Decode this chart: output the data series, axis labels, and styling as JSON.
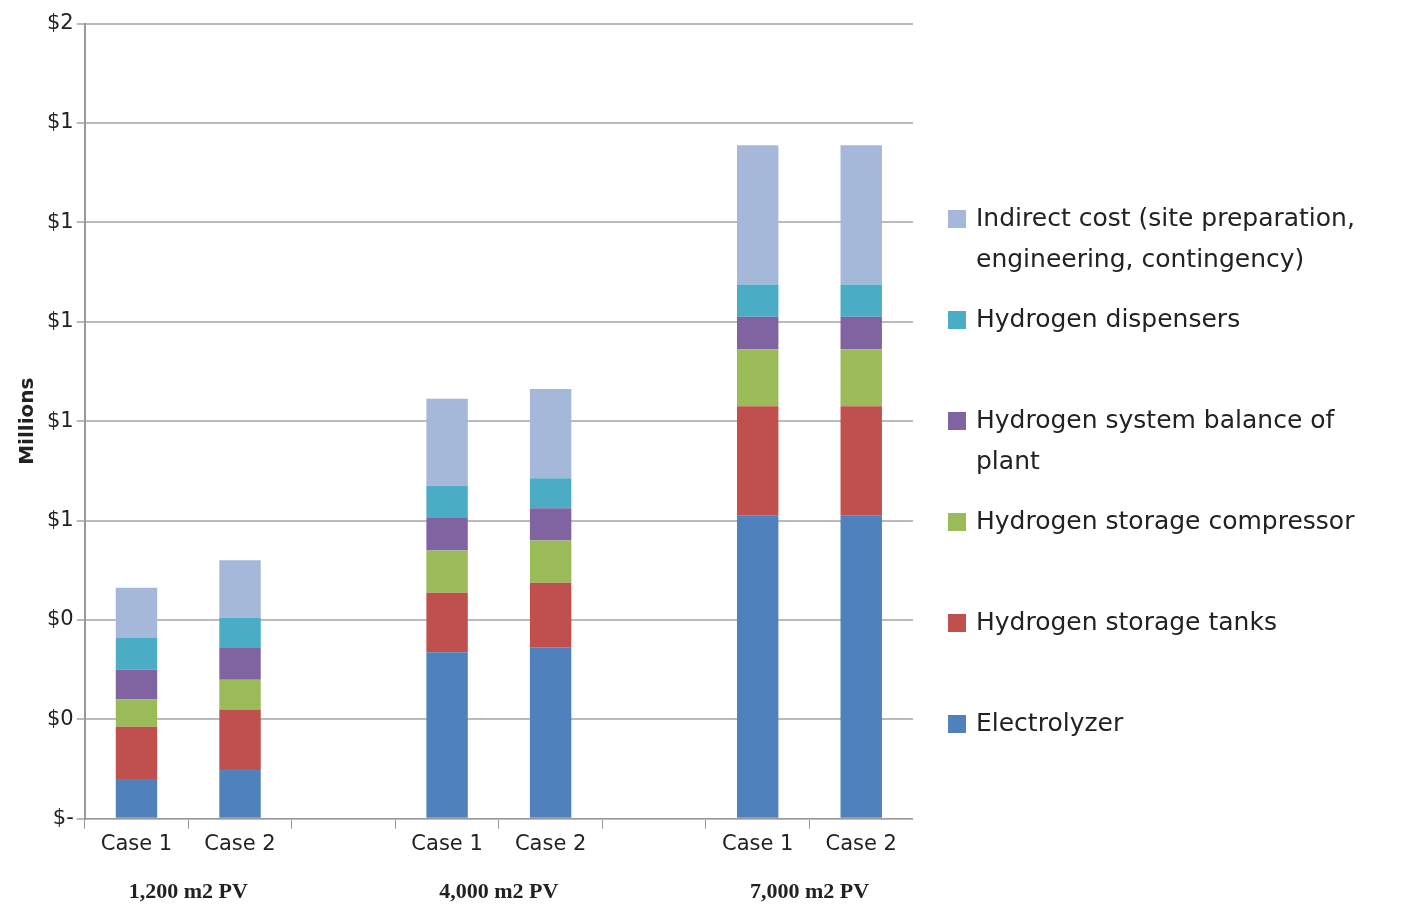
{
  "chart_data": {
    "type": "bar",
    "stacked": true,
    "ylabel": "Millions",
    "categories": [
      "Case 1",
      "Case 2",
      null,
      "Case 1",
      "Case 2",
      null,
      "Case 1",
      "Case 2"
    ],
    "series": [
      {
        "name": "Electrolyzer",
        "color": "#4f81bd",
        "values": [
          0.08,
          0.1,
          null,
          0.335,
          0.345,
          null,
          0.61,
          0.61
        ]
      },
      {
        "name": "Hydrogen storage tanks",
        "color": "#c0504d",
        "values": [
          0.105,
          0.12,
          null,
          0.12,
          0.13,
          null,
          0.22,
          0.22
        ]
      },
      {
        "name": "Hydrogen storage compressor",
        "color": "#9bbb59",
        "values": [
          0.055,
          0.06,
          null,
          0.085,
          0.085,
          null,
          0.115,
          0.115
        ]
      },
      {
        "name": "Hydrogen system balance of plant",
        "color": "#8064a2",
        "values": [
          0.06,
          0.065,
          null,
          0.065,
          0.065,
          null,
          0.065,
          0.065
        ]
      },
      {
        "name": "Hydrogen dispensers",
        "color": "#4bacc6",
        "values": [
          0.065,
          0.06,
          null,
          0.065,
          0.06,
          null,
          0.065,
          0.065
        ]
      },
      {
        "name": "Indirect cost (site preparation, engineering, contingency)",
        "color": "#a5b8d9",
        "values": [
          0.1,
          0.115,
          null,
          0.175,
          0.18,
          null,
          0.28,
          0.28
        ]
      }
    ],
    "ylim": [
      0,
      1.6
    ],
    "yticks": [
      {
        "value": 0,
        "label": "$-"
      },
      {
        "value": 0.2,
        "label": "$0"
      },
      {
        "value": 0.4,
        "label": "$0"
      },
      {
        "value": 0.6,
        "label": "$1"
      },
      {
        "value": 0.8,
        "label": "$1"
      },
      {
        "value": 1.0,
        "label": "$1"
      },
      {
        "value": 1.2,
        "label": "$1"
      },
      {
        "value": 1.4,
        "label": "$1"
      },
      {
        "value": 1.6,
        "label": "$2"
      }
    ],
    "grid": "y",
    "legend": "right",
    "annotations": [
      "1,200 m2 PV",
      "4,000 m2 PV",
      "7,000 m2 PV"
    ]
  }
}
